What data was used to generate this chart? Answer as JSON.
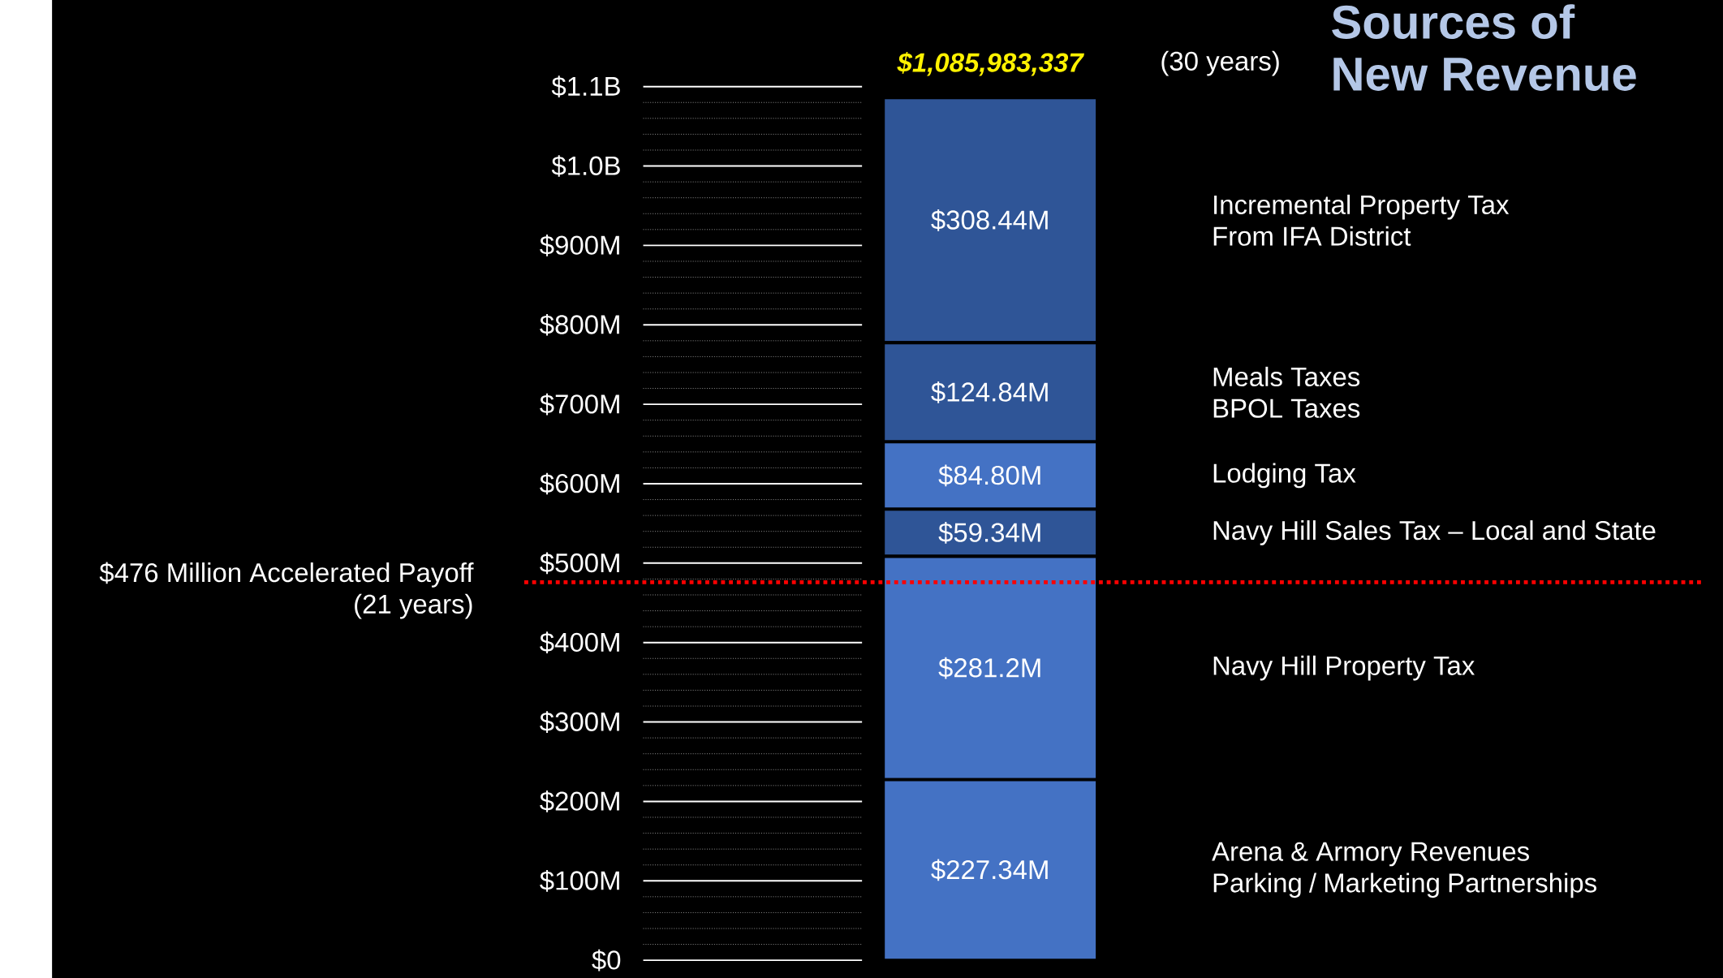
{
  "chart_data": {
    "type": "bar",
    "stacked": true,
    "title": "Sources of New Revenue",
    "categories": [
      null
    ],
    "series": [
      {
        "name": "Arena & Armory Revenues Parking / Marketing Partnerships",
        "color": "#4472c4",
        "values": [
          227340000
        ],
        "value_labels": [
          "$227.34M"
        ]
      },
      {
        "name": "Navy Hill Property Tax",
        "color": "#4472c4",
        "values": [
          281200000
        ],
        "value_labels": [
          "$281.2M"
        ]
      },
      {
        "name": "Navy Hill Sales Tax – Local and State",
        "color": "#2f5597",
        "values": [
          59340000
        ],
        "value_labels": [
          "$59.34M"
        ]
      },
      {
        "name": "Lodging Tax",
        "color": "#4472c4",
        "values": [
          84800000
        ],
        "value_labels": [
          "$84.80M"
        ]
      },
      {
        "name": "Meals Taxes BPOL Taxes",
        "color": "#2f5597",
        "values": [
          124840000
        ],
        "value_labels": [
          "$124.84M"
        ]
      },
      {
        "name": "Incremental Property Tax From IFA District",
        "color": "#2f5597",
        "values": [
          308440000
        ],
        "value_labels": [
          "$308.44M"
        ]
      }
    ],
    "annotations": [
      "$1,085,983,337",
      "(30 years)"
    ],
    "ref_lines": [
      {
        "axis": "y",
        "value": 476000000,
        "label": "$476 Million Accelerated Payoff (21 years)",
        "color": "#ff0000",
        "line_style": "dotted"
      }
    ],
    "ylim": [
      0,
      1100000000
    ],
    "yticks": [
      {
        "value": 0,
        "label": "$0"
      },
      {
        "value": 100000000,
        "label": "$100M"
      },
      {
        "value": 200000000,
        "label": "$200M"
      },
      {
        "value": 300000000,
        "label": "$300M"
      },
      {
        "value": 400000000,
        "label": "$400M"
      },
      {
        "value": 500000000,
        "label": "$500M"
      },
      {
        "value": 600000000,
        "label": "$600M"
      },
      {
        "value": 700000000,
        "label": "$700M"
      },
      {
        "value": 800000000,
        "label": "$800M"
      },
      {
        "value": 900000000,
        "label": "$900M"
      },
      {
        "value": 1000000000,
        "label": "$1.0B"
      },
      {
        "value": 1100000000,
        "label": "$1.1B"
      }
    ],
    "grid": "y",
    "legend": false,
    "tick_labels": "y"
  }
}
